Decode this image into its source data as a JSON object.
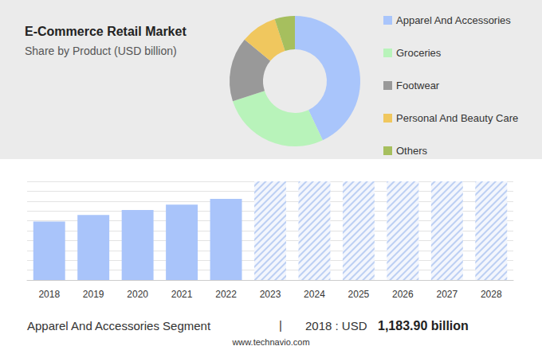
{
  "chart_data": [
    {
      "type": "pie",
      "title": "E-Commerce Retail Market",
      "subtitle": "Share by Product (USD billion)",
      "categories": [
        "Apparel And Accessories",
        "Groceries",
        "Footwear",
        "Personal And Beauty Care",
        "Others"
      ],
      "values": [
        43,
        27,
        16,
        9,
        5
      ],
      "colors": [
        "#a9c5fb",
        "#b8f3ba",
        "#999999",
        "#f0c75e",
        "#a6bf5e"
      ],
      "legend": "right",
      "data_labels": false
    },
    {
      "type": "bar",
      "categories": [
        "2018",
        "2019",
        "2020",
        "2021",
        "2022",
        "2023",
        "2024",
        "2025",
        "2026",
        "2027",
        "2028"
      ],
      "series": [
        {
          "color": "#a9c4fa",
          "line_style": "solid",
          "values": [
            1183.9,
            1320,
            1420,
            1530,
            1645,
            null,
            null,
            null,
            null,
            null,
            null
          ]
        },
        {
          "color": "#bccff3",
          "line_style": "hatched",
          "values": [
            null,
            null,
            null,
            null,
            null,
            2000,
            2000,
            2000,
            2000,
            2000,
            2000
          ]
        }
      ],
      "ylim": [
        0,
        2000
      ],
      "yticks": [
        0,
        200,
        400,
        600,
        800,
        1000,
        1200,
        1400,
        1600,
        1800,
        2000
      ],
      "grid": true,
      "tick_labels": "x"
    }
  ],
  "footer": {
    "segment": "Apparel And Accessories Segment",
    "separator": "|",
    "prefix": "2018 : USD",
    "value_label": "1,183.90 billion"
  },
  "source": "www.technavio.com"
}
